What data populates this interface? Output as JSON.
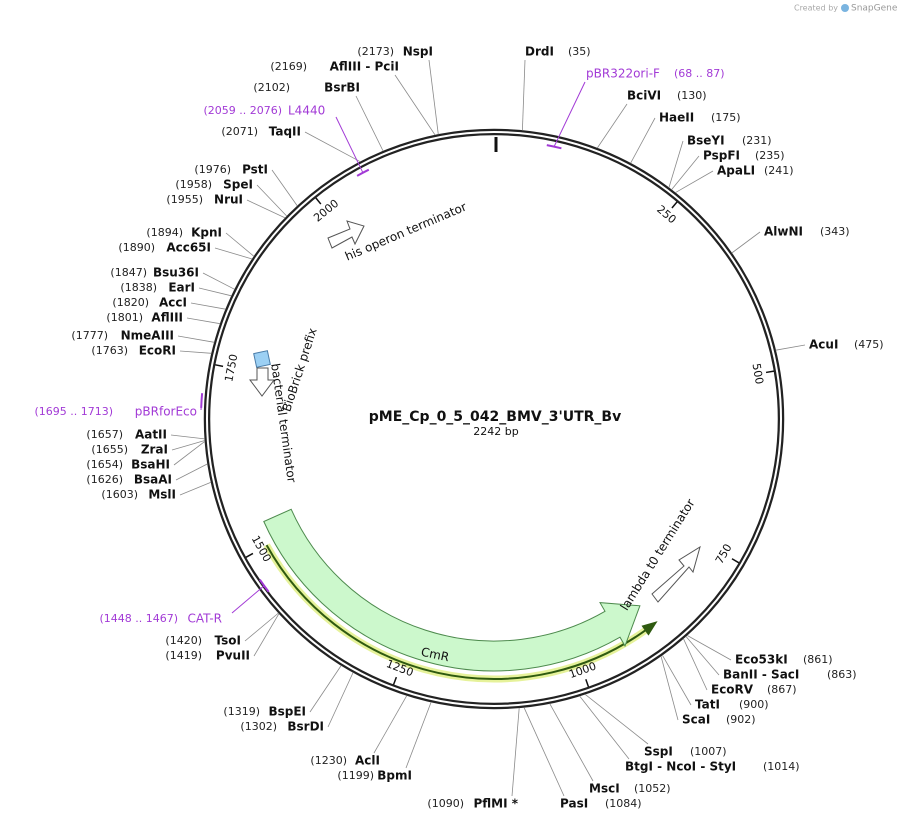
{
  "header": {
    "created_by": "Created by",
    "brand": "SnapGene"
  },
  "map": {
    "name": "pME_Cp_0_5_042_BMV_3'UTR_Bv",
    "length": "2242 bp",
    "ticks": [
      250,
      500,
      750,
      1000,
      1250,
      1500,
      1750,
      2000
    ],
    "enzymes": [
      {
        "name": "DrdI",
        "site": "(35)"
      },
      {
        "name": "BciVI",
        "site": "(130)"
      },
      {
        "name": "HaeII",
        "site": "(175)"
      },
      {
        "name": "BseYI",
        "site": "(231)"
      },
      {
        "name": "PspFI",
        "site": "(235)"
      },
      {
        "name": "ApaLI",
        "site": "(241)"
      },
      {
        "name": "AlwNI",
        "site": "(343)"
      },
      {
        "name": "AcuI",
        "site": "(475)"
      },
      {
        "name": "Eco53kI",
        "site": "(861)"
      },
      {
        "name": "BanII - SacI",
        "site": "(863)"
      },
      {
        "name": "EcoRV",
        "site": "(867)"
      },
      {
        "name": "TatI",
        "site": "(900)"
      },
      {
        "name": "ScaI",
        "site": "(902)"
      },
      {
        "name": "SspI",
        "site": "(1007)"
      },
      {
        "name": "BtgI - NcoI - StyI",
        "site": "(1014)"
      },
      {
        "name": "MscI",
        "site": "(1052)"
      },
      {
        "name": "PasI",
        "site": "(1084)"
      },
      {
        "name": "PflMI *",
        "site": "(1090)"
      },
      {
        "name": "BpmI",
        "site": "(1199)"
      },
      {
        "name": "AclI",
        "site": "(1230)"
      },
      {
        "name": "BsrDI",
        "site": "(1302)"
      },
      {
        "name": "BspEI",
        "site": "(1319)"
      },
      {
        "name": "PvuII",
        "site": "(1419)"
      },
      {
        "name": "TsoI",
        "site": "(1420)"
      },
      {
        "name": "MslI",
        "site": "(1603)"
      },
      {
        "name": "BsaAI",
        "site": "(1626)"
      },
      {
        "name": "BsaHI",
        "site": "(1654)"
      },
      {
        "name": "ZraI",
        "site": "(1655)"
      },
      {
        "name": "AatII",
        "site": "(1657)"
      },
      {
        "name": "EcoRI",
        "site": "(1763)"
      },
      {
        "name": "NmeAIII",
        "site": "(1777)"
      },
      {
        "name": "AflIII",
        "site": "(1801)"
      },
      {
        "name": "AccI",
        "site": "(1820)"
      },
      {
        "name": "EarI",
        "site": "(1838)"
      },
      {
        "name": "Bsu36I",
        "site": "(1847)"
      },
      {
        "name": "Acc65I",
        "site": "(1890)"
      },
      {
        "name": "KpnI",
        "site": "(1894)"
      },
      {
        "name": "NruI",
        "site": "(1955)"
      },
      {
        "name": "SpeI",
        "site": "(1958)"
      },
      {
        "name": "PstI",
        "site": "(1976)"
      },
      {
        "name": "TaqII",
        "site": "(2071)"
      },
      {
        "name": "BsrBI",
        "site": "(2102)"
      },
      {
        "name": "AflIII - PciI",
        "site": "(2169)"
      },
      {
        "name": "NspI",
        "site": "(2173)"
      }
    ],
    "primers": [
      {
        "name": "pBR322ori-F",
        "range": "(68 .. 87)"
      },
      {
        "name": "L4440",
        "range": "(2059 .. 2076)"
      },
      {
        "name": "pBRforEco",
        "range": "(1695 .. 1713)"
      },
      {
        "name": "CAT-R",
        "range": "(1448 .. 1467)"
      }
    ],
    "features": [
      {
        "label": "his operon terminator"
      },
      {
        "label": "BioBrick prefix"
      },
      {
        "label": "bacterial terminator"
      },
      {
        "label": "lambda t0 terminator"
      },
      {
        "label": "CmR"
      }
    ]
  }
}
